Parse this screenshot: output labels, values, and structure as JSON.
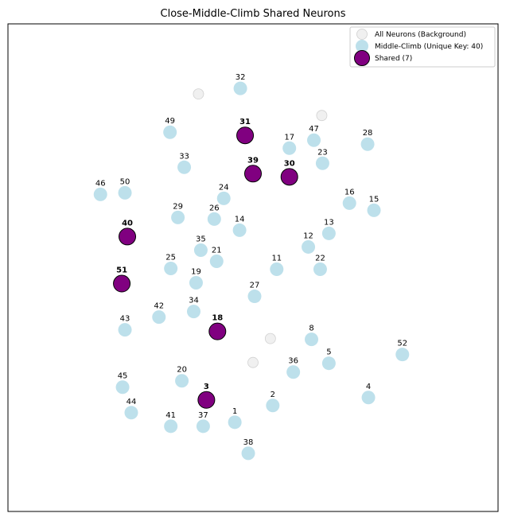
{
  "chart_data": {
    "type": "scatter",
    "title": "Close-Middle-Climb Shared Neurons",
    "xlabel": "",
    "ylabel": "",
    "xlim": [
      0,
      620
    ],
    "ylim": [
      0,
      612
    ],
    "grid": false,
    "axis_ticks": false,
    "legend_position": "upper right",
    "colors": {
      "background": "#e6e6e6",
      "unique": "#add8e6",
      "shared": "#800080",
      "shared_edge": "#000000"
    },
    "legend": [
      {
        "label": "All Neurons (Background)",
        "kind": "background"
      },
      {
        "label": "Middle-Climb (Unique Key: 40)",
        "kind": "unique"
      },
      {
        "label": "Shared (7)",
        "kind": "shared"
      }
    ],
    "background_points": [
      {
        "x": 241,
        "y": 88
      },
      {
        "x": 397,
        "y": 115
      },
      {
        "x": 332,
        "y": 395
      },
      {
        "x": 310,
        "y": 425
      }
    ],
    "unique_points": [
      {
        "label": "32",
        "x": 294,
        "y": 81
      },
      {
        "label": "49",
        "x": 205,
        "y": 136
      },
      {
        "label": "17",
        "x": 356,
        "y": 156
      },
      {
        "label": "47",
        "x": 387,
        "y": 146
      },
      {
        "label": "28",
        "x": 455,
        "y": 151
      },
      {
        "label": "33",
        "x": 223,
        "y": 180
      },
      {
        "label": "23",
        "x": 398,
        "y": 175
      },
      {
        "label": "46",
        "x": 117,
        "y": 214
      },
      {
        "label": "50",
        "x": 148,
        "y": 212
      },
      {
        "label": "24",
        "x": 273,
        "y": 219
      },
      {
        "label": "16",
        "x": 432,
        "y": 225
      },
      {
        "label": "15",
        "x": 463,
        "y": 234
      },
      {
        "label": "29",
        "x": 215,
        "y": 243
      },
      {
        "label": "26",
        "x": 261,
        "y": 245
      },
      {
        "label": "14",
        "x": 293,
        "y": 259
      },
      {
        "label": "13",
        "x": 406,
        "y": 263
      },
      {
        "label": "12",
        "x": 380,
        "y": 280
      },
      {
        "label": "35",
        "x": 244,
        "y": 284
      },
      {
        "label": "21",
        "x": 264,
        "y": 298
      },
      {
        "label": "25",
        "x": 206,
        "y": 307
      },
      {
        "label": "11",
        "x": 340,
        "y": 308
      },
      {
        "label": "22",
        "x": 395,
        "y": 308
      },
      {
        "label": "19",
        "x": 238,
        "y": 325
      },
      {
        "label": "27",
        "x": 312,
        "y": 342
      },
      {
        "label": "42",
        "x": 191,
        "y": 368
      },
      {
        "label": "34",
        "x": 235,
        "y": 361
      },
      {
        "label": "43",
        "x": 148,
        "y": 384
      },
      {
        "label": "8",
        "x": 384,
        "y": 396
      },
      {
        "label": "52",
        "x": 499,
        "y": 415
      },
      {
        "label": "5",
        "x": 406,
        "y": 426
      },
      {
        "label": "36",
        "x": 361,
        "y": 437
      },
      {
        "label": "20",
        "x": 220,
        "y": 448
      },
      {
        "label": "45",
        "x": 145,
        "y": 456
      },
      {
        "label": "4",
        "x": 456,
        "y": 469
      },
      {
        "label": "2",
        "x": 335,
        "y": 479
      },
      {
        "label": "44",
        "x": 156,
        "y": 488
      },
      {
        "label": "1",
        "x": 287,
        "y": 500
      },
      {
        "label": "41",
        "x": 206,
        "y": 505
      },
      {
        "label": "37",
        "x": 247,
        "y": 505
      },
      {
        "label": "38",
        "x": 304,
        "y": 539
      }
    ],
    "shared_points": [
      {
        "label": "31",
        "x": 300,
        "y": 140
      },
      {
        "label": "39",
        "x": 310,
        "y": 188
      },
      {
        "label": "30",
        "x": 356,
        "y": 192
      },
      {
        "label": "40",
        "x": 151,
        "y": 267
      },
      {
        "label": "51",
        "x": 144,
        "y": 326
      },
      {
        "label": "18",
        "x": 265,
        "y": 386
      },
      {
        "label": "3",
        "x": 251,
        "y": 472
      }
    ]
  }
}
